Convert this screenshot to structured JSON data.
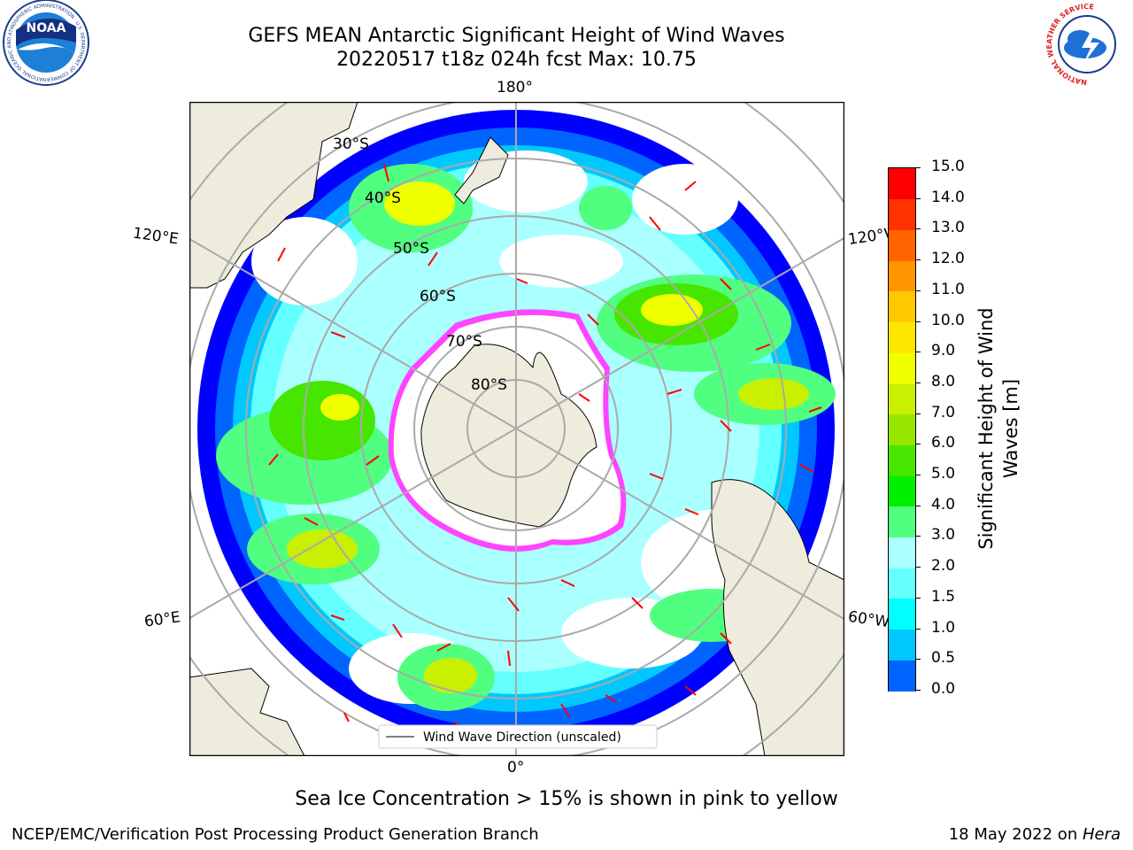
{
  "header": {
    "title_line1": "GEFS MEAN Antarctic Significant Height of Wind Waves",
    "title_line2": "20220517 t18z 024h fcst   Max: 10.75",
    "left_logo_text": "NOAA",
    "left_logo_ring": "NATIONAL OCEANIC AND ATMOSPHERIC ADMINISTRATION · U.S. DEPARTMENT OF COMMERCE",
    "right_logo_ring": "NATIONAL WEATHER SERVICE"
  },
  "map": {
    "longitude_labels": {
      "top": "180°",
      "bottom": "0°",
      "upper_left": "120°E",
      "upper_right": "120°W",
      "lower_left": "60°E",
      "lower_right": "60°W"
    },
    "latitude_labels": [
      "30°S",
      "40°S",
      "50°S",
      "60°S",
      "70°S",
      "80°S"
    ],
    "legend_label": "Wind Wave Direction (unscaled)",
    "arrow_color": "#ff0000",
    "land_color": "#eeecdc",
    "ice_edge_colors": [
      "#ff44ff",
      "#ffa500",
      "#ffff00"
    ]
  },
  "colorbar": {
    "label": "Significant Height of Wind Waves [m]",
    "ticks": [
      "0.0",
      "0.5",
      "1.0",
      "1.5",
      "2.0",
      "3.0",
      "4.0",
      "5.0",
      "6.0",
      "7.0",
      "8.0",
      "9.0",
      "10.0",
      "11.0",
      "12.0",
      "13.0",
      "14.0",
      "15.0"
    ],
    "colors": [
      "#0000ff",
      "#0064ff",
      "#00c8ff",
      "#00ffff",
      "#64ffff",
      "#aaffff",
      "#50ff80",
      "#00f000",
      "#46e600",
      "#96e600",
      "#c8f000",
      "#f0ff00",
      "#ffe600",
      "#ffc800",
      "#ff9600",
      "#ff6400",
      "#ff3200",
      "#ff0000"
    ]
  },
  "caption": "Sea Ice Concentration > 15% is shown in pink to yellow",
  "footer": {
    "left": "NCEP/EMC/Verification Post Processing Product Generation Branch",
    "right_prefix": "18 May 2022 on ",
    "right_machine": "Hera"
  }
}
